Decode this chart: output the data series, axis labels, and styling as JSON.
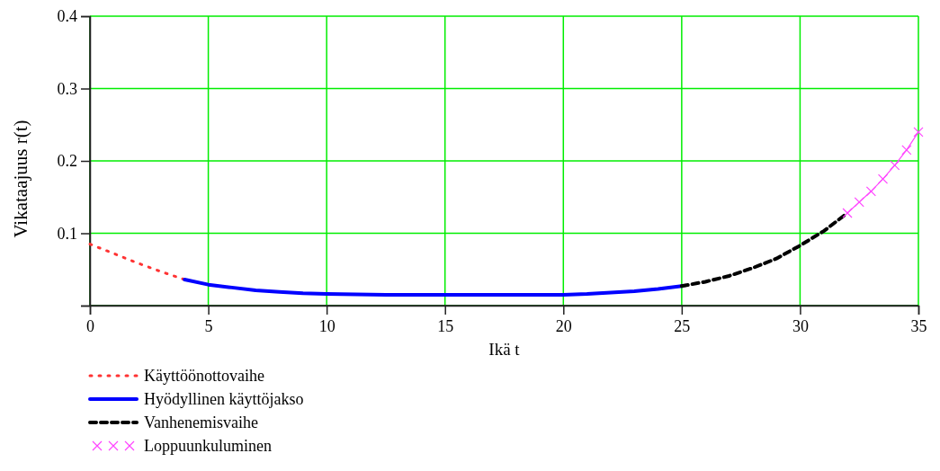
{
  "chart_data": {
    "type": "line",
    "xlabel": "Ikä t",
    "ylabel": "Vikataajuus r(t)",
    "xlim": [
      0,
      35
    ],
    "xticks": [
      0,
      5,
      10,
      15,
      20,
      25,
      30,
      35
    ],
    "ylim": [
      0,
      0.4
    ],
    "yticks": [
      {
        "value": 0,
        "label": null
      },
      0.1,
      0.2,
      0.3,
      0.4
    ],
    "grid": true,
    "legend": "bottom left",
    "series": [
      {
        "name": "Käyttöönottovaihe",
        "color": "#ff3333",
        "line_style": "dotted",
        "x": [
          0,
          1,
          2,
          3,
          4
        ],
        "values": [
          0.085,
          0.072,
          0.059,
          0.047,
          0.036
        ]
      },
      {
        "name": "Hyödyllinen käyttöjakso",
        "color": "#0000ff",
        "line_style": "solid",
        "x": [
          4,
          5,
          6,
          7,
          8,
          9,
          10,
          12.5,
          15,
          17.5,
          20,
          21,
          22,
          23,
          24,
          25
        ],
        "values": [
          0.036,
          0.029,
          0.025,
          0.021,
          0.019,
          0.017,
          0.016,
          0.015,
          0.015,
          0.015,
          0.015,
          0.016,
          0.018,
          0.02,
          0.023,
          0.027
        ]
      },
      {
        "name": "Vanhenemisvaihe",
        "color": "#000000",
        "line_style": "dashed",
        "x": [
          25,
          26,
          27,
          28,
          29,
          30,
          31,
          32
        ],
        "values": [
          0.027,
          0.033,
          0.041,
          0.052,
          0.065,
          0.083,
          0.103,
          0.128
        ]
      },
      {
        "name": "Loppuunkuluminen",
        "color": "#ff44ff",
        "line_style": "solid",
        "marker": "cross",
        "x": [
          32,
          32.5,
          33,
          33.5,
          34,
          34.5,
          35
        ],
        "values": [
          0.128,
          0.143,
          0.158,
          0.175,
          0.194,
          0.215,
          0.24
        ]
      }
    ]
  }
}
